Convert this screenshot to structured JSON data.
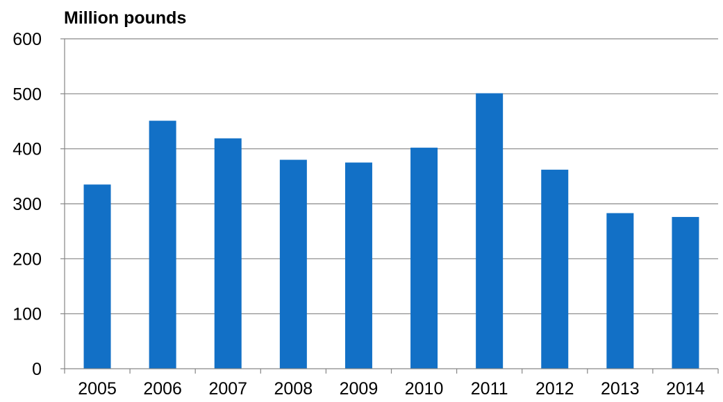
{
  "chart_data": {
    "type": "bar",
    "title": "",
    "ylabel": "Million pounds",
    "xlabel": "",
    "categories": [
      "2005",
      "2006",
      "2007",
      "2008",
      "2009",
      "2010",
      "2011",
      "2012",
      "2013",
      "2014"
    ],
    "values": [
      335,
      451,
      419,
      380,
      375,
      402,
      501,
      362,
      283,
      276
    ],
    "ylim": [
      0,
      600
    ],
    "yticks": [
      0,
      100,
      200,
      300,
      400,
      500,
      600
    ],
    "grid": true,
    "legend": "none",
    "bar_color": "#1270C6",
    "grid_color": "#868686"
  }
}
